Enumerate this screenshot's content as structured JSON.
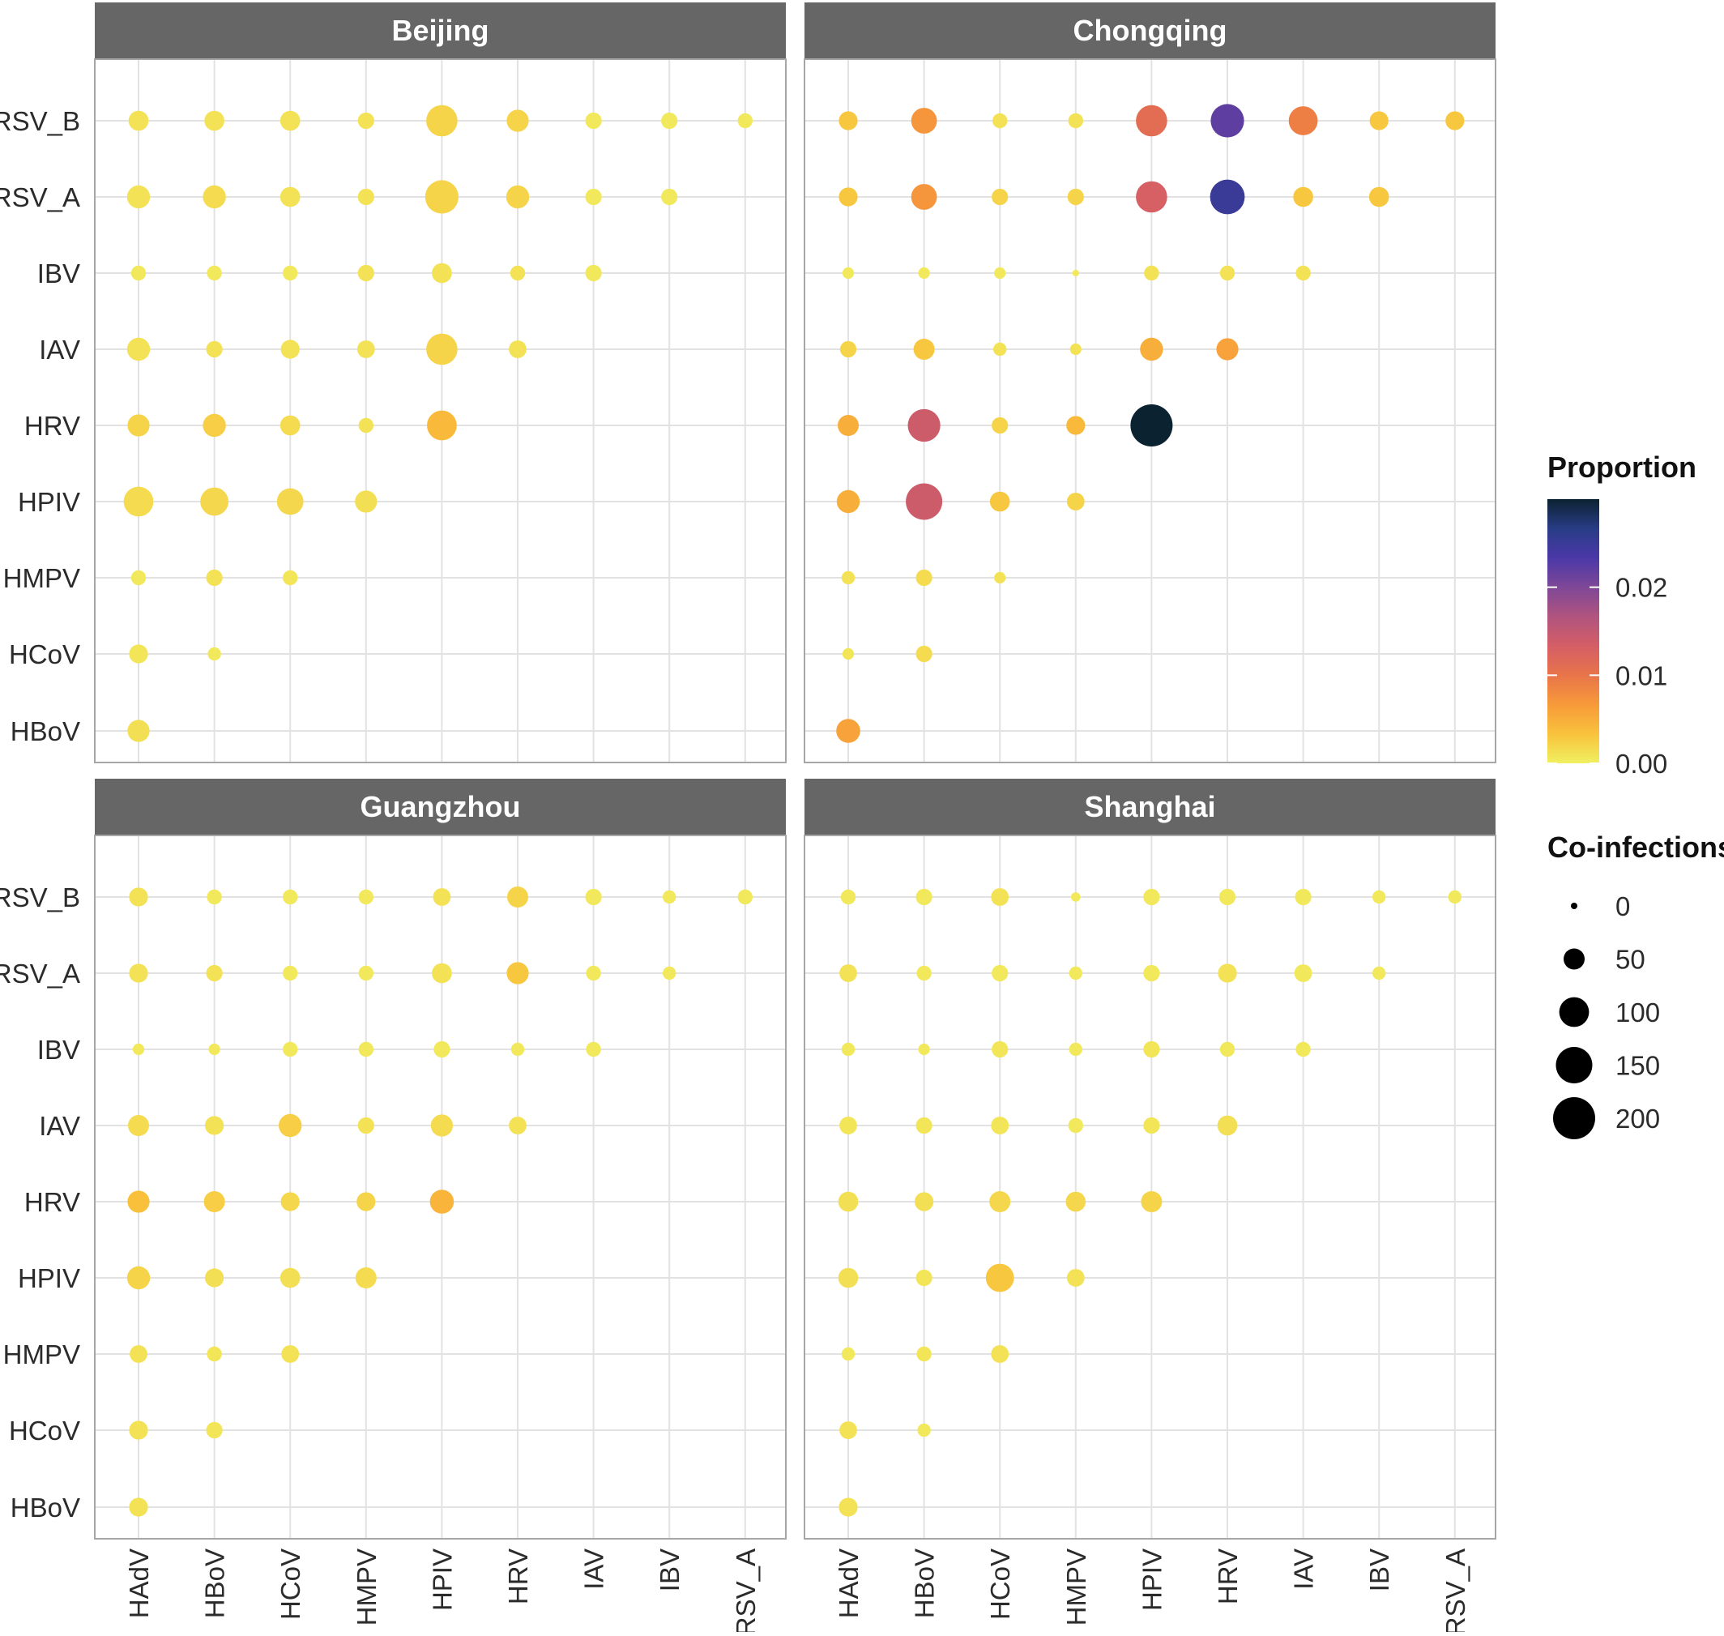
{
  "chart_data": {
    "type": "scatter",
    "panels": [
      "Beijing",
      "Chongqing",
      "Guangzhou",
      "Shanghai"
    ],
    "x_categories": [
      "HAdV",
      "HBoV",
      "HCoV",
      "HMPV",
      "HPIV",
      "HRV",
      "IAV",
      "IBV",
      "RSV_A"
    ],
    "y_categories": [
      "HBoV",
      "HCoV",
      "HMPV",
      "HPIV",
      "HRV",
      "IAV",
      "IBV",
      "RSV_A",
      "RSV_B"
    ],
    "grid": true,
    "legend_position": "right",
    "color_legend": {
      "title": "Proportion",
      "range": [
        0,
        0.03
      ],
      "breaks": [
        0.0,
        0.01,
        0.02
      ],
      "labels": [
        "0.00",
        "0.01",
        "0.02"
      ],
      "colors": [
        "#F0F060",
        "#F9C23C",
        "#F79A3A",
        "#E8744A",
        "#D45E66",
        "#B0547F",
        "#7E4797",
        "#4B38A8",
        "#283C85",
        "#0B2231"
      ]
    },
    "size_legend": {
      "title": "Co-infections",
      "breaks": [
        0,
        50,
        100,
        150,
        200
      ],
      "labels": [
        "0",
        "50",
        "100",
        "150",
        "200"
      ]
    },
    "series": [
      {
        "panel": "Beijing",
        "points": [
          [
            "HAdV",
            "RSV_B",
            45,
            0.001
          ],
          [
            "HBoV",
            "RSV_B",
            45,
            0.001
          ],
          [
            "HCoV",
            "RSV_B",
            45,
            0.001
          ],
          [
            "HMPV",
            "RSV_B",
            30,
            0.001
          ],
          [
            "HPIV",
            "RSV_B",
            110,
            0.002
          ],
          [
            "HRV",
            "RSV_B",
            55,
            0.002
          ],
          [
            "IAV",
            "RSV_B",
            30,
            0.0005
          ],
          [
            "IBV",
            "RSV_B",
            30,
            0.0005
          ],
          [
            "RSV_A",
            "RSV_B",
            25,
            0.0005
          ],
          [
            "HAdV",
            "RSV_A",
            60,
            0.001
          ],
          [
            "HBoV",
            "RSV_A",
            60,
            0.0015
          ],
          [
            "HCoV",
            "RSV_A",
            45,
            0.001
          ],
          [
            "HMPV",
            "RSV_A",
            30,
            0.001
          ],
          [
            "HPIV",
            "RSV_A",
            125,
            0.002
          ],
          [
            "HRV",
            "RSV_A",
            60,
            0.002
          ],
          [
            "IAV",
            "RSV_A",
            30,
            0.0005
          ],
          [
            "IBV",
            "RSV_A",
            30,
            0.0005
          ],
          [
            "HAdV",
            "IBV",
            25,
            0.0005
          ],
          [
            "HBoV",
            "IBV",
            25,
            0.0005
          ],
          [
            "HCoV",
            "IBV",
            25,
            0.0005
          ],
          [
            "HMPV",
            "IBV",
            30,
            0.001
          ],
          [
            "HPIV",
            "IBV",
            45,
            0.001
          ],
          [
            "HRV",
            "IBV",
            25,
            0.001
          ],
          [
            "IAV",
            "IBV",
            30,
            0.0005
          ],
          [
            "HAdV",
            "IAV",
            60,
            0.001
          ],
          [
            "HBoV",
            "IAV",
            30,
            0.001
          ],
          [
            "HCoV",
            "IAV",
            40,
            0.001
          ],
          [
            "HMPV",
            "IAV",
            35,
            0.001
          ],
          [
            "HPIV",
            "IAV",
            110,
            0.002
          ],
          [
            "HRV",
            "IAV",
            35,
            0.001
          ],
          [
            "HAdV",
            "HRV",
            55,
            0.002
          ],
          [
            "HBoV",
            "HRV",
            60,
            0.0025
          ],
          [
            "HCoV",
            "HRV",
            45,
            0.0015
          ],
          [
            "HMPV",
            "HRV",
            25,
            0.001
          ],
          [
            "HPIV",
            "HRV",
            100,
            0.004
          ],
          [
            "HAdV",
            "HPIV",
            100,
            0.0015
          ],
          [
            "HBoV",
            "HPIV",
            90,
            0.0018
          ],
          [
            "HCoV",
            "HPIV",
            80,
            0.0018
          ],
          [
            "HMPV",
            "HPIV",
            55,
            0.0012
          ],
          [
            "HAdV",
            "HMPV",
            25,
            0.0005
          ],
          [
            "HBoV",
            "HMPV",
            30,
            0.001
          ],
          [
            "HCoV",
            "HMPV",
            25,
            0.0008
          ],
          [
            "HAdV",
            "HCoV",
            40,
            0.0008
          ],
          [
            "HBoV",
            "HCoV",
            20,
            0.0005
          ],
          [
            "HAdV",
            "HBoV",
            55,
            0.0012
          ]
        ]
      },
      {
        "panel": "Chongqing",
        "points": [
          [
            "HAdV",
            "RSV_B",
            40,
            0.003
          ],
          [
            "HBoV",
            "RSV_B",
            75,
            0.007
          ],
          [
            "HCoV",
            "RSV_B",
            25,
            0.001
          ],
          [
            "HMPV",
            "RSV_B",
            25,
            0.001
          ],
          [
            "HPIV",
            "RSV_B",
            110,
            0.011
          ],
          [
            "HRV",
            "RSV_B",
            125,
            0.022
          ],
          [
            "IAV",
            "RSV_B",
            95,
            0.009
          ],
          [
            "IBV",
            "RSV_B",
            40,
            0.003
          ],
          [
            "RSV_A",
            "RSV_B",
            40,
            0.003
          ],
          [
            "HAdV",
            "RSV_A",
            40,
            0.003
          ],
          [
            "HBoV",
            "RSV_A",
            75,
            0.007
          ],
          [
            "HCoV",
            "RSV_A",
            30,
            0.002
          ],
          [
            "HMPV",
            "RSV_A",
            30,
            0.002
          ],
          [
            "HPIV",
            "RSV_A",
            110,
            0.013
          ],
          [
            "HRV",
            "RSV_A",
            135,
            0.025
          ],
          [
            "IAV",
            "RSV_A",
            45,
            0.003
          ],
          [
            "IBV",
            "RSV_A",
            45,
            0.003
          ],
          [
            "HAdV",
            "IBV",
            15,
            0.0005
          ],
          [
            "HBoV",
            "IBV",
            15,
            0.0005
          ],
          [
            "HCoV",
            "IBV",
            15,
            0.0005
          ],
          [
            "HMPV",
            "IBV",
            5,
            0.0005
          ],
          [
            "HPIV",
            "IBV",
            25,
            0.001
          ],
          [
            "HRV",
            "IBV",
            25,
            0.001
          ],
          [
            "IAV",
            "IBV",
            25,
            0.001
          ],
          [
            "HAdV",
            "IAV",
            30,
            0.002
          ],
          [
            "HBoV",
            "IAV",
            50,
            0.003
          ],
          [
            "HCoV",
            "IAV",
            20,
            0.001
          ],
          [
            "HMPV",
            "IAV",
            15,
            0.001
          ],
          [
            "HPIV",
            "IAV",
            60,
            0.005
          ],
          [
            "HRV",
            "IAV",
            55,
            0.006
          ],
          [
            "HAdV",
            "HRV",
            50,
            0.005
          ],
          [
            "HBoV",
            "HRV",
            120,
            0.014
          ],
          [
            "HCoV",
            "HRV",
            30,
            0.002
          ],
          [
            "HMPV",
            "HRV",
            40,
            0.004
          ],
          [
            "HPIV",
            "HRV",
            200,
            0.03
          ],
          [
            "HAdV",
            "HPIV",
            60,
            0.005
          ],
          [
            "HBoV",
            "HPIV",
            150,
            0.014
          ],
          [
            "HCoV",
            "HPIV",
            45,
            0.003
          ],
          [
            "HMPV",
            "HPIV",
            35,
            0.002
          ],
          [
            "HAdV",
            "HMPV",
            20,
            0.001
          ],
          [
            "HBoV",
            "HMPV",
            30,
            0.0015
          ],
          [
            "HCoV",
            "HMPV",
            15,
            0.001
          ],
          [
            "HAdV",
            "HCoV",
            15,
            0.0008
          ],
          [
            "HBoV",
            "HCoV",
            30,
            0.0015
          ],
          [
            "HAdV",
            "HBoV",
            65,
            0.006
          ]
        ]
      },
      {
        "panel": "Guangzhou",
        "points": [
          [
            "HAdV",
            "RSV_B",
            40,
            0.001
          ],
          [
            "HBoV",
            "RSV_B",
            25,
            0.0005
          ],
          [
            "HCoV",
            "RSV_B",
            25,
            0.0005
          ],
          [
            "HMPV",
            "RSV_B",
            25,
            0.0005
          ],
          [
            "HPIV",
            "RSV_B",
            35,
            0.001
          ],
          [
            "HRV",
            "RSV_B",
            50,
            0.002
          ],
          [
            "IAV",
            "RSV_B",
            30,
            0.0005
          ],
          [
            "IBV",
            "RSV_B",
            20,
            0.0005
          ],
          [
            "RSV_A",
            "RSV_B",
            25,
            0.0005
          ],
          [
            "HAdV",
            "RSV_A",
            40,
            0.001
          ],
          [
            "HBoV",
            "RSV_A",
            30,
            0.001
          ],
          [
            "HCoV",
            "RSV_A",
            25,
            0.0005
          ],
          [
            "HMPV",
            "RSV_A",
            25,
            0.0005
          ],
          [
            "HPIV",
            "RSV_A",
            45,
            0.001
          ],
          [
            "HRV",
            "RSV_A",
            55,
            0.003
          ],
          [
            "IAV",
            "RSV_A",
            25,
            0.0005
          ],
          [
            "IBV",
            "RSV_A",
            20,
            0.0005
          ],
          [
            "HAdV",
            "IBV",
            15,
            0.0005
          ],
          [
            "HBoV",
            "IBV",
            15,
            0.0005
          ],
          [
            "HCoV",
            "IBV",
            25,
            0.0005
          ],
          [
            "HMPV",
            "IBV",
            25,
            0.0005
          ],
          [
            "HPIV",
            "IBV",
            30,
            0.0005
          ],
          [
            "HRV",
            "IBV",
            20,
            0.0005
          ],
          [
            "IAV",
            "IBV",
            25,
            0.0005
          ],
          [
            "HAdV",
            "IAV",
            50,
            0.0015
          ],
          [
            "HBoV",
            "IAV",
            40,
            0.001
          ],
          [
            "HCoV",
            "IAV",
            60,
            0.0025
          ],
          [
            "HMPV",
            "IAV",
            30,
            0.001
          ],
          [
            "HPIV",
            "IAV",
            55,
            0.0015
          ],
          [
            "HRV",
            "IAV",
            35,
            0.001
          ],
          [
            "HAdV",
            "HRV",
            55,
            0.0035
          ],
          [
            "HBoV",
            "HRV",
            50,
            0.0025
          ],
          [
            "HCoV",
            "HRV",
            40,
            0.0018
          ],
          [
            "HMPV",
            "HRV",
            40,
            0.002
          ],
          [
            "HPIV",
            "HRV",
            65,
            0.0045
          ],
          [
            "HAdV",
            "HPIV",
            60,
            0.002
          ],
          [
            "HBoV",
            "HPIV",
            40,
            0.0012
          ],
          [
            "HCoV",
            "HPIV",
            45,
            0.0012
          ],
          [
            "HMPV",
            "HPIV",
            50,
            0.0015
          ],
          [
            "HAdV",
            "HMPV",
            35,
            0.001
          ],
          [
            "HBoV",
            "HMPV",
            25,
            0.0008
          ],
          [
            "HCoV",
            "HMPV",
            35,
            0.001
          ],
          [
            "HAdV",
            "HCoV",
            40,
            0.001
          ],
          [
            "HBoV",
            "HCoV",
            30,
            0.0008
          ],
          [
            "HAdV",
            "HBoV",
            40,
            0.001
          ]
        ]
      },
      {
        "panel": "Shanghai",
        "points": [
          [
            "HAdV",
            "RSV_B",
            25,
            0.0005
          ],
          [
            "HBoV",
            "RSV_B",
            30,
            0.0005
          ],
          [
            "HCoV",
            "RSV_B",
            35,
            0.001
          ],
          [
            "HMPV",
            "RSV_B",
            10,
            0.0005
          ],
          [
            "HPIV",
            "RSV_B",
            30,
            0.0005
          ],
          [
            "HRV",
            "RSV_B",
            30,
            0.0005
          ],
          [
            "IAV",
            "RSV_B",
            30,
            0.0005
          ],
          [
            "IBV",
            "RSV_B",
            20,
            0.0005
          ],
          [
            "RSV_A",
            "RSV_B",
            20,
            0.0005
          ],
          [
            "HAdV",
            "RSV_A",
            35,
            0.001
          ],
          [
            "HBoV",
            "RSV_A",
            25,
            0.0005
          ],
          [
            "HCoV",
            "RSV_A",
            30,
            0.0005
          ],
          [
            "HMPV",
            "RSV_A",
            20,
            0.0005
          ],
          [
            "HPIV",
            "RSV_A",
            30,
            0.0005
          ],
          [
            "HRV",
            "RSV_A",
            40,
            0.001
          ],
          [
            "IAV",
            "RSV_A",
            35,
            0.0005
          ],
          [
            "IBV",
            "RSV_A",
            20,
            0.0005
          ],
          [
            "HAdV",
            "IBV",
            20,
            0.0005
          ],
          [
            "HBoV",
            "IBV",
            15,
            0.0005
          ],
          [
            "HCoV",
            "IBV",
            30,
            0.0008
          ],
          [
            "HMPV",
            "IBV",
            20,
            0.0005
          ],
          [
            "HPIV",
            "IBV",
            30,
            0.0008
          ],
          [
            "HRV",
            "IBV",
            25,
            0.0005
          ],
          [
            "IAV",
            "IBV",
            25,
            0.0005
          ],
          [
            "HAdV",
            "IAV",
            35,
            0.0008
          ],
          [
            "HBoV",
            "IAV",
            30,
            0.0008
          ],
          [
            "HCoV",
            "IAV",
            35,
            0.0008
          ],
          [
            "HMPV",
            "IAV",
            25,
            0.0005
          ],
          [
            "HPIV",
            "IAV",
            30,
            0.0008
          ],
          [
            "HRV",
            "IAV",
            45,
            0.0012
          ],
          [
            "HAdV",
            "HRV",
            45,
            0.0012
          ],
          [
            "HBoV",
            "HRV",
            40,
            0.0012
          ],
          [
            "HCoV",
            "HRV",
            50,
            0.0018
          ],
          [
            "HMPV",
            "HRV",
            45,
            0.0018
          ],
          [
            "HPIV",
            "HRV",
            50,
            0.002
          ],
          [
            "HAdV",
            "HPIV",
            45,
            0.0012
          ],
          [
            "HBoV",
            "HPIV",
            30,
            0.0008
          ],
          [
            "HCoV",
            "HPIV",
            90,
            0.003
          ],
          [
            "HMPV",
            "HPIV",
            35,
            0.001
          ],
          [
            "HAdV",
            "HMPV",
            20,
            0.0005
          ],
          [
            "HBoV",
            "HMPV",
            25,
            0.0008
          ],
          [
            "HCoV",
            "HMPV",
            35,
            0.001
          ],
          [
            "HAdV",
            "HCoV",
            35,
            0.001
          ],
          [
            "HBoV",
            "HCoV",
            20,
            0.0005
          ],
          [
            "HAdV",
            "HBoV",
            40,
            0.001
          ]
        ]
      }
    ]
  }
}
